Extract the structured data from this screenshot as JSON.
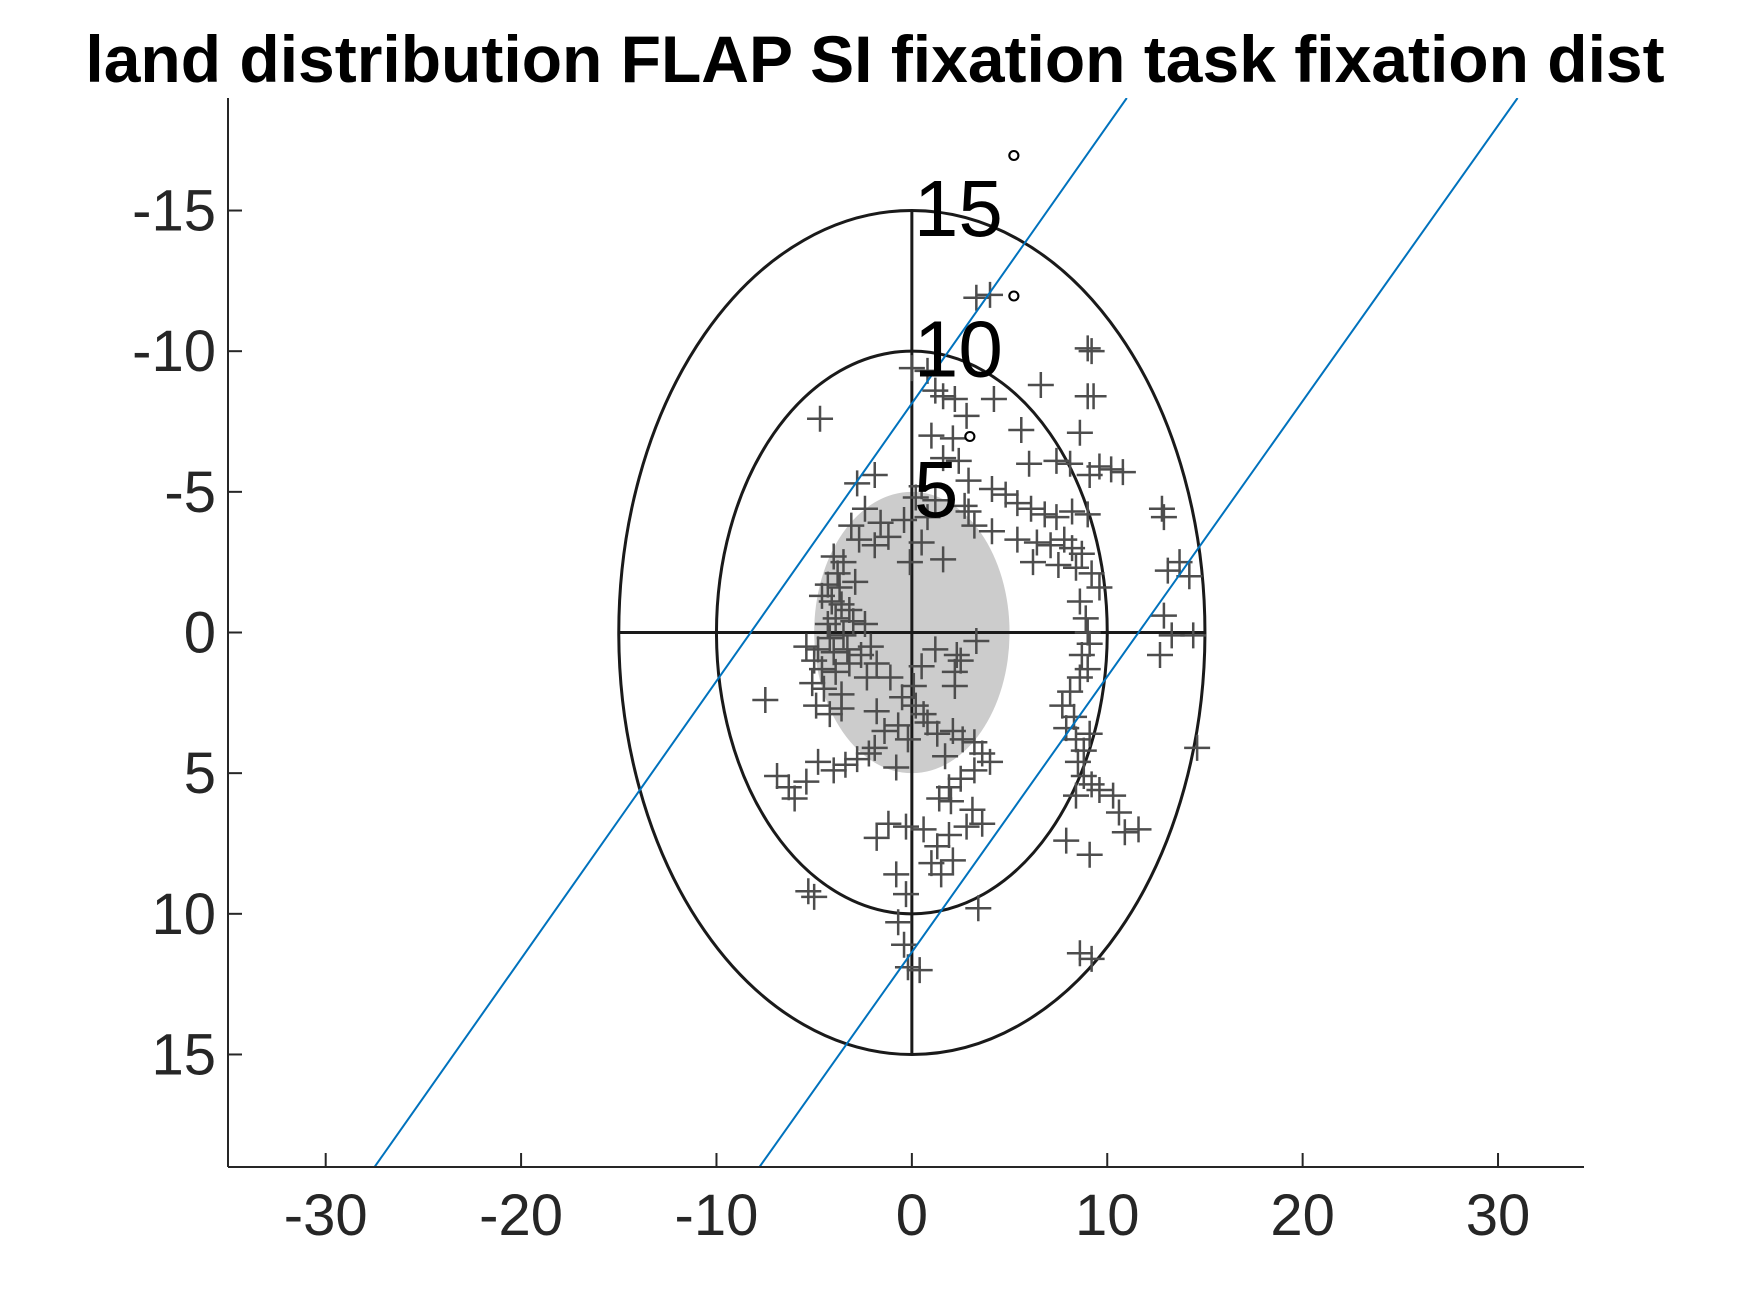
{
  "chart_data": {
    "type": "scatter",
    "title": "land distribution FLAP SI fixation task fixation dist",
    "xlabel": "",
    "ylabel": "",
    "xlim": [
      -35,
      34.4
    ],
    "ylim": [
      -19,
      19
    ],
    "y_axis_reversed": true,
    "grid": false,
    "x_ticks": [
      -30,
      -20,
      -10,
      0,
      10,
      20,
      30
    ],
    "x_tick_labels": [
      "-30",
      "-20",
      "-10",
      "0",
      "10",
      "20",
      "30"
    ],
    "y_ticks": [
      -15,
      -10,
      -5,
      0,
      5,
      10,
      15
    ],
    "y_tick_labels": [
      "-15",
      "-10",
      "-5",
      "0",
      "5",
      "10",
      "15"
    ],
    "colors": {
      "markers": "#4d4d4d",
      "rings": "#1a1a1a",
      "ellipse_fill": "#cccccc",
      "boundary_lines": "#0072bd",
      "axes": "#262626"
    },
    "rings": [
      {
        "radius": 5,
        "label": "5",
        "unit": "°"
      },
      {
        "radius": 10,
        "label": "10",
        "unit": "°"
      },
      {
        "radius": 15,
        "label": "15",
        "unit": "°"
      }
    ],
    "gray_ellipse": {
      "cx": 0,
      "cy": 0,
      "rx": 5,
      "ry": 5
    },
    "boundary_lines": [
      {
        "name": "",
        "x": [
          -27.5,
          11
        ],
        "y": [
          19,
          -19
        ]
      },
      {
        "name": "",
        "x": [
          -7.8,
          31
        ],
        "y": [
          19,
          -19
        ]
      }
    ],
    "series": [
      {
        "name": "",
        "marker": "+",
        "points": [
          [
            0,
            -9.4
          ],
          [
            0.8,
            -9.3
          ],
          [
            1.2,
            -8.6
          ],
          [
            1.6,
            -8.4
          ],
          [
            2.2,
            -8.3
          ],
          [
            3.3,
            -11.9
          ],
          [
            4.0,
            -12.0
          ],
          [
            6.6,
            -8.8
          ],
          [
            4.2,
            -8.3
          ],
          [
            9.0,
            -10.1
          ],
          [
            9.2,
            -10.0
          ],
          [
            9.0,
            -8.4
          ],
          [
            9.3,
            -8.4
          ],
          [
            -4.7,
            -7.6
          ],
          [
            2.8,
            -7.7
          ],
          [
            5.6,
            -7.2
          ],
          [
            8.6,
            -7.1
          ],
          [
            1.0,
            -7.0
          ],
          [
            2.1,
            -6.9
          ],
          [
            1.6,
            -6.2
          ],
          [
            2.4,
            -6.1
          ],
          [
            6.0,
            -6.0
          ],
          [
            7.4,
            -6.1
          ],
          [
            8.1,
            -6.0
          ],
          [
            9.6,
            -5.9
          ],
          [
            10.2,
            -5.8
          ],
          [
            10.8,
            -5.7
          ],
          [
            9.1,
            -5.6
          ],
          [
            -2.8,
            -5.3
          ],
          [
            -1.9,
            -5.6
          ],
          [
            0.5,
            -5.2
          ],
          [
            0.2,
            -4.8
          ],
          [
            1.2,
            -4.7
          ],
          [
            2.9,
            -5.4
          ],
          [
            4.1,
            -5.1
          ],
          [
            4.8,
            -4.9
          ],
          [
            5.4,
            -4.6
          ],
          [
            6.1,
            -4.4
          ],
          [
            6.8,
            -4.2
          ],
          [
            7.4,
            -4.1
          ],
          [
            8.2,
            -4.3
          ],
          [
            9.0,
            -4.2
          ],
          [
            12.8,
            -4.4
          ],
          [
            12.9,
            -4.1
          ],
          [
            -2.4,
            -4.4
          ],
          [
            -1.6,
            -3.9
          ],
          [
            -1.2,
            -3.4
          ],
          [
            -0.4,
            -4.0
          ],
          [
            -3.1,
            -3.8
          ],
          [
            -2.7,
            -3.3
          ],
          [
            -1.9,
            -3.1
          ],
          [
            2.9,
            -4.3
          ],
          [
            3.2,
            -3.8
          ],
          [
            4.1,
            -3.6
          ],
          [
            5.4,
            -3.3
          ],
          [
            6.4,
            -3.2
          ],
          [
            7.1,
            -3.1
          ],
          [
            7.8,
            -3.3
          ],
          [
            8.2,
            -3.0
          ],
          [
            8.7,
            -2.8
          ],
          [
            6.2,
            -2.5
          ],
          [
            7.5,
            -2.4
          ],
          [
            8.4,
            -2.3
          ],
          [
            9.2,
            -2.1
          ],
          [
            9.6,
            -1.6
          ],
          [
            13.7,
            -2.5
          ],
          [
            13.1,
            -2.2
          ],
          [
            14.2,
            -2.0
          ],
          [
            -4.0,
            -2.7
          ],
          [
            -3.5,
            -2.5
          ],
          [
            -3.8,
            -2.1
          ],
          [
            -4.3,
            -1.7
          ],
          [
            -3.7,
            -1.6
          ],
          [
            -2.9,
            -1.8
          ],
          [
            -4.6,
            -1.3
          ],
          [
            -4.1,
            -1.1
          ],
          [
            -3.6,
            -1.0
          ],
          [
            -3.2,
            -0.8
          ],
          [
            -3.9,
            -0.5
          ],
          [
            -4.3,
            -0.3
          ],
          [
            -3.0,
            -0.4
          ],
          [
            -2.4,
            -0.3
          ],
          [
            -3.5,
            0.1
          ],
          [
            -4.2,
            0.2
          ],
          [
            -5.4,
            0.5
          ],
          [
            -4.8,
            0.6
          ],
          [
            -4.0,
            0.7
          ],
          [
            -3.3,
            0.6
          ],
          [
            -2.6,
            0.8
          ],
          [
            -2.1,
            0.5
          ],
          [
            -5.0,
            1.0
          ],
          [
            -4.6,
            1.3
          ],
          [
            -3.9,
            1.4
          ],
          [
            -3.2,
            1.1
          ],
          [
            -2.3,
            1.6
          ],
          [
            -1.8,
            1.1
          ],
          [
            -5.1,
            1.8
          ],
          [
            -4.5,
            2.0
          ],
          [
            -3.6,
            2.2
          ],
          [
            -4.9,
            2.6
          ],
          [
            -4.2,
            2.9
          ],
          [
            -3.6,
            2.7
          ],
          [
            -7.5,
            2.4
          ],
          [
            8.6,
            -1.1
          ],
          [
            8.9,
            -0.5
          ],
          [
            9.0,
            0.0
          ],
          [
            9.1,
            0.4
          ],
          [
            8.7,
            0.8
          ],
          [
            9.0,
            1.3
          ],
          [
            8.6,
            1.6
          ],
          [
            8.1,
            2.1
          ],
          [
            7.7,
            2.6
          ],
          [
            8.3,
            3.0
          ],
          [
            7.9,
            3.4
          ],
          [
            8.4,
            3.8
          ],
          [
            8.8,
            4.2
          ],
          [
            9.1,
            3.6
          ],
          [
            8.5,
            4.6
          ],
          [
            8.8,
            5.1
          ],
          [
            9.2,
            5.4
          ],
          [
            8.4,
            5.8
          ],
          [
            9.6,
            5.6
          ],
          [
            10.3,
            5.8
          ],
          [
            10.6,
            6.4
          ],
          [
            12.7,
            0.8
          ],
          [
            13.3,
            0.1
          ],
          [
            14.4,
            0.1
          ],
          [
            12.9,
            -0.6
          ],
          [
            14.6,
            4.1
          ],
          [
            0.5,
            1.2
          ],
          [
            1.2,
            0.6
          ],
          [
            2.2,
            1.4
          ],
          [
            2.3,
            0.8
          ],
          [
            3.3,
            0.3
          ],
          [
            0.1,
            1.9
          ],
          [
            -0.5,
            2.3
          ],
          [
            0.2,
            2.6
          ],
          [
            0.6,
            2.9
          ],
          [
            0.8,
            3.2
          ],
          [
            1.3,
            3.6
          ],
          [
            -0.7,
            3.3
          ],
          [
            -0.2,
            3.8
          ],
          [
            -1.4,
            3.5
          ],
          [
            -1.9,
            4.1
          ],
          [
            -2.2,
            4.3
          ],
          [
            -2.8,
            4.5
          ],
          [
            -3.4,
            4.7
          ],
          [
            -4.0,
            4.9
          ],
          [
            -6.9,
            5.1
          ],
          [
            -5.4,
            5.3
          ],
          [
            -4.8,
            4.6
          ],
          [
            -6.3,
            5.5
          ],
          [
            -6.0,
            5.9
          ],
          [
            2.1,
            3.5
          ],
          [
            2.6,
            3.8
          ],
          [
            3.2,
            3.9
          ],
          [
            3.6,
            4.3
          ],
          [
            4.0,
            4.6
          ],
          [
            3.2,
            4.9
          ],
          [
            2.5,
            5.2
          ],
          [
            1.9,
            5.5
          ],
          [
            2.0,
            6.0
          ],
          [
            1.4,
            5.9
          ],
          [
            3.1,
            6.3
          ],
          [
            3.6,
            6.8
          ],
          [
            2.8,
            6.9
          ],
          [
            1.9,
            7.2
          ],
          [
            1.3,
            7.6
          ],
          [
            1.0,
            8.2
          ],
          [
            2.1,
            8.1
          ],
          [
            1.5,
            8.6
          ],
          [
            0.6,
            7.0
          ],
          [
            -0.3,
            6.9
          ],
          [
            -1.2,
            6.8
          ],
          [
            -1.8,
            7.3
          ],
          [
            -0.8,
            8.6
          ],
          [
            -0.3,
            9.3
          ],
          [
            -0.7,
            10.3
          ],
          [
            -0.4,
            11.1
          ],
          [
            -0.2,
            11.9
          ],
          [
            0.4,
            12.0
          ],
          [
            3.4,
            9.8
          ],
          [
            -5.3,
            9.2
          ],
          [
            -5.0,
            9.4
          ],
          [
            7.9,
            7.4
          ],
          [
            9.1,
            7.9
          ],
          [
            8.6,
            11.4
          ],
          [
            9.2,
            11.6
          ],
          [
            10.9,
            7.1
          ],
          [
            11.6,
            7.0
          ],
          [
            -0.1,
            -2.5
          ],
          [
            0.5,
            -3.2
          ],
          [
            0.8,
            -4.1
          ],
          [
            1.6,
            -2.6
          ],
          [
            2.5,
            1.0
          ],
          [
            2.2,
            1.9
          ],
          [
            -1.8,
            2.8
          ],
          [
            -1.1,
            1.6
          ],
          [
            -0.8,
            4.8
          ],
          [
            1.7,
            4.4
          ],
          [
            2.7,
            -4.5
          ]
        ]
      }
    ]
  }
}
